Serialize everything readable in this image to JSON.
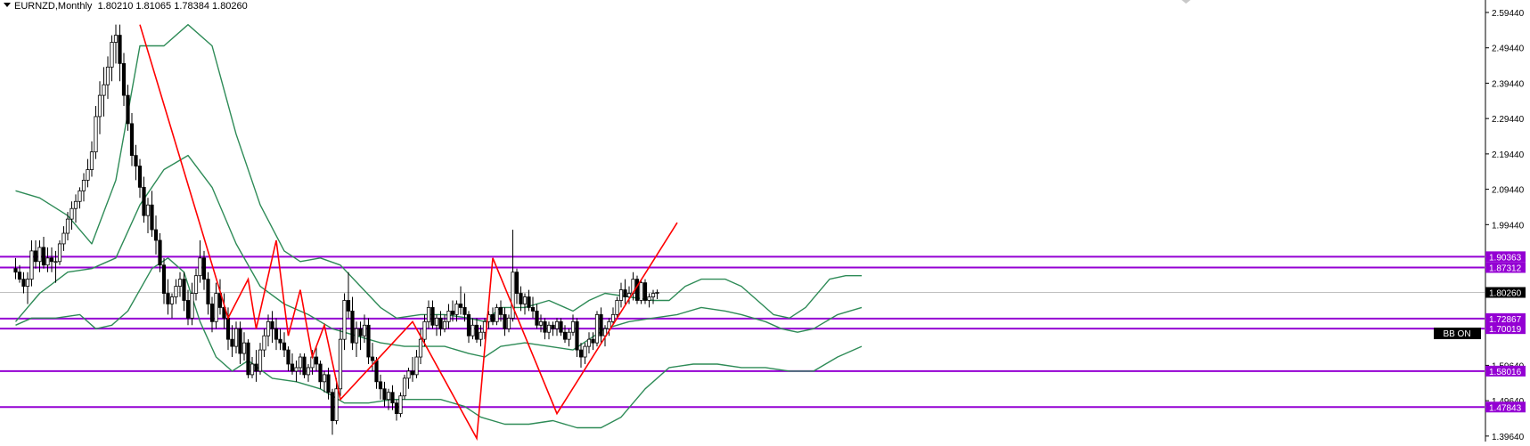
{
  "header": {
    "symbol": "EURNZD",
    "timeframe": "Monthly",
    "ohlc": "1.80210 1.81065 1.78384 1.80260"
  },
  "badge": {
    "label": "BB ON"
  },
  "colors": {
    "candle": "#000000",
    "bands": "#2e8b57",
    "zigzag": "#ff0000",
    "levels": "#9400d3",
    "axis": "#000000",
    "current_price_line": "#c0c0c0"
  },
  "chart_data": {
    "type": "candlestick",
    "symbol": "EURNZD",
    "timeframe": "Monthly",
    "ylim": [
      1.3664,
      2.5944
    ],
    "y_ticks": [
      "2.59440",
      "2.49440",
      "2.39440",
      "2.29440",
      "2.19440",
      "2.09440",
      "1.99440",
      "1.59640",
      "1.49640",
      "1.39640"
    ],
    "y_tick_values": [
      2.5944,
      2.4944,
      2.3944,
      2.2944,
      2.1944,
      2.0944,
      1.9944,
      1.5964,
      1.4964,
      1.3964
    ],
    "last_price": {
      "label": "1.80260",
      "value": 1.8026
    },
    "levels": [
      {
        "label": "1.90363",
        "value": 1.90363
      },
      {
        "label": "1.87312",
        "value": 1.87312
      },
      {
        "label": "1.72867",
        "value": 1.72867
      },
      {
        "label": "1.70019",
        "value": 1.70019
      },
      {
        "label": "1.58016",
        "value": 1.58016
      },
      {
        "label": "1.47843",
        "value": 1.47843
      }
    ],
    "zigzag": [
      {
        "i": 0,
        "y": 2.56
      },
      {
        "i": 22,
        "y": 1.73
      },
      {
        "i": 27,
        "y": 1.84
      },
      {
        "i": 29,
        "y": 1.7
      },
      {
        "i": 34,
        "y": 1.95
      },
      {
        "i": 37,
        "y": 1.68
      },
      {
        "i": 40,
        "y": 1.81
      },
      {
        "i": 43,
        "y": 1.62
      },
      {
        "i": 46,
        "y": 1.71
      },
      {
        "i": 50,
        "y": 1.5
      },
      {
        "i": 68,
        "y": 1.72
      },
      {
        "i": 84,
        "y": 1.39
      },
      {
        "i": 88,
        "y": 1.9
      },
      {
        "i": 104,
        "y": 1.46
      },
      {
        "i": 134,
        "y": 2.0
      }
    ],
    "candles_start_i": -31,
    "candles": [
      [
        1.87,
        1.9,
        1.84,
        1.86
      ],
      [
        1.86,
        1.88,
        1.83,
        1.84
      ],
      [
        1.84,
        1.86,
        1.8,
        1.82
      ],
      [
        1.82,
        1.86,
        1.77,
        1.84
      ],
      [
        1.84,
        1.95,
        1.82,
        1.92
      ],
      [
        1.92,
        1.95,
        1.87,
        1.89
      ],
      [
        1.89,
        1.95,
        1.86,
        1.93
      ],
      [
        1.93,
        1.96,
        1.87,
        1.88
      ],
      [
        1.88,
        1.93,
        1.86,
        1.9
      ],
      [
        1.9,
        1.93,
        1.86,
        1.89
      ],
      [
        1.89,
        1.92,
        1.83,
        1.89
      ],
      [
        1.89,
        1.95,
        1.88,
        1.94
      ],
      [
        1.94,
        1.99,
        1.92,
        1.97
      ],
      [
        1.97,
        2.03,
        1.95,
        2.01
      ],
      [
        2.01,
        2.06,
        1.98,
        2.04
      ],
      [
        2.04,
        2.08,
        2.0,
        2.06
      ],
      [
        2.06,
        2.1,
        2.04,
        2.09
      ],
      [
        2.09,
        2.14,
        2.06,
        2.12
      ],
      [
        2.12,
        2.18,
        2.1,
        2.15
      ],
      [
        2.15,
        2.23,
        2.13,
        2.2
      ],
      [
        2.2,
        2.33,
        2.18,
        2.3
      ],
      [
        2.3,
        2.4,
        2.25,
        2.36
      ],
      [
        2.36,
        2.44,
        2.3,
        2.39
      ],
      [
        2.39,
        2.47,
        2.35,
        2.44
      ],
      [
        2.44,
        2.53,
        2.4,
        2.51
      ],
      [
        2.51,
        2.56,
        2.45,
        2.53
      ],
      [
        2.53,
        2.56,
        2.4,
        2.45
      ],
      [
        2.45,
        2.48,
        2.33,
        2.36
      ],
      [
        2.36,
        2.39,
        2.26,
        2.28
      ],
      [
        2.28,
        2.31,
        2.16,
        2.19
      ],
      [
        2.19,
        2.22,
        2.12,
        2.16
      ],
      [
        2.16,
        2.18,
        2.07,
        2.1
      ],
      [
        2.1,
        2.13,
        2.0,
        2.02
      ],
      [
        2.02,
        2.07,
        1.97,
        2.05
      ],
      [
        2.05,
        2.09,
        1.96,
        1.98
      ],
      [
        1.98,
        2.02,
        1.91,
        1.95
      ],
      [
        1.95,
        1.97,
        1.86,
        1.88
      ],
      [
        1.88,
        1.9,
        1.77,
        1.8
      ],
      [
        1.8,
        1.84,
        1.74,
        1.77
      ],
      [
        1.77,
        1.8,
        1.73,
        1.79
      ],
      [
        1.79,
        1.84,
        1.77,
        1.82
      ],
      [
        1.82,
        1.86,
        1.79,
        1.84
      ],
      [
        1.84,
        1.86,
        1.75,
        1.78
      ],
      [
        1.78,
        1.81,
        1.71,
        1.73
      ],
      [
        1.73,
        1.83,
        1.71,
        1.8
      ],
      [
        1.8,
        1.87,
        1.78,
        1.85
      ],
      [
        1.85,
        1.95,
        1.83,
        1.9
      ],
      [
        1.9,
        1.92,
        1.81,
        1.84
      ],
      [
        1.84,
        1.86,
        1.74,
        1.77
      ],
      [
        1.77,
        1.79,
        1.69,
        1.72
      ],
      [
        1.72,
        1.83,
        1.7,
        1.8
      ],
      [
        1.8,
        1.84,
        1.74,
        1.76
      ],
      [
        1.76,
        1.8,
        1.7,
        1.73
      ],
      [
        1.73,
        1.76,
        1.64,
        1.67
      ],
      [
        1.67,
        1.71,
        1.62,
        1.65
      ],
      [
        1.65,
        1.72,
        1.63,
        1.7
      ],
      [
        1.7,
        1.72,
        1.6,
        1.63
      ],
      [
        1.63,
        1.69,
        1.61,
        1.66
      ],
      [
        1.66,
        1.67,
        1.56,
        1.57
      ],
      [
        1.57,
        1.62,
        1.56,
        1.6
      ],
      [
        1.6,
        1.64,
        1.55,
        1.58
      ],
      [
        1.58,
        1.66,
        1.57,
        1.64
      ],
      [
        1.64,
        1.7,
        1.62,
        1.68
      ],
      [
        1.68,
        1.74,
        1.65,
        1.72
      ],
      [
        1.72,
        1.75,
        1.66,
        1.7
      ],
      [
        1.7,
        1.73,
        1.64,
        1.67
      ],
      [
        1.67,
        1.7,
        1.64,
        1.66
      ],
      [
        1.66,
        1.69,
        1.62,
        1.64
      ],
      [
        1.64,
        1.65,
        1.58,
        1.6
      ],
      [
        1.6,
        1.63,
        1.57,
        1.58
      ],
      [
        1.58,
        1.61,
        1.55,
        1.59
      ],
      [
        1.59,
        1.63,
        1.57,
        1.62
      ],
      [
        1.62,
        1.63,
        1.56,
        1.57
      ],
      [
        1.57,
        1.6,
        1.55,
        1.59
      ],
      [
        1.59,
        1.64,
        1.57,
        1.62
      ],
      [
        1.62,
        1.65,
        1.58,
        1.6
      ],
      [
        1.6,
        1.61,
        1.53,
        1.55
      ],
      [
        1.55,
        1.58,
        1.52,
        1.57
      ],
      [
        1.57,
        1.59,
        1.5,
        1.52
      ],
      [
        1.52,
        1.53,
        1.4,
        1.44
      ],
      [
        1.44,
        1.56,
        1.43,
        1.53
      ],
      [
        1.53,
        1.7,
        1.51,
        1.67
      ],
      [
        1.67,
        1.8,
        1.64,
        1.78
      ],
      [
        1.78,
        1.86,
        1.73,
        1.75
      ],
      [
        1.75,
        1.79,
        1.64,
        1.66
      ],
      [
        1.66,
        1.72,
        1.62,
        1.7
      ],
      [
        1.7,
        1.72,
        1.64,
        1.68
      ],
      [
        1.68,
        1.74,
        1.66,
        1.71
      ],
      [
        1.71,
        1.73,
        1.6,
        1.62
      ],
      [
        1.62,
        1.66,
        1.58,
        1.61
      ],
      [
        1.61,
        1.62,
        1.53,
        1.55
      ],
      [
        1.55,
        1.57,
        1.5,
        1.53
      ],
      [
        1.53,
        1.55,
        1.48,
        1.5
      ],
      [
        1.5,
        1.53,
        1.47,
        1.52
      ],
      [
        1.52,
        1.54,
        1.47,
        1.49
      ],
      [
        1.49,
        1.5,
        1.44,
        1.46
      ],
      [
        1.46,
        1.52,
        1.45,
        1.51
      ],
      [
        1.51,
        1.57,
        1.5,
        1.56
      ],
      [
        1.56,
        1.59,
        1.53,
        1.58
      ],
      [
        1.58,
        1.62,
        1.55,
        1.57
      ],
      [
        1.57,
        1.64,
        1.56,
        1.62
      ],
      [
        1.62,
        1.7,
        1.6,
        1.67
      ],
      [
        1.67,
        1.74,
        1.65,
        1.72
      ],
      [
        1.72,
        1.78,
        1.7,
        1.76
      ],
      [
        1.76,
        1.78,
        1.7,
        1.71
      ],
      [
        1.71,
        1.74,
        1.68,
        1.73
      ],
      [
        1.73,
        1.75,
        1.68,
        1.7
      ],
      [
        1.7,
        1.74,
        1.69,
        1.72
      ],
      [
        1.72,
        1.77,
        1.7,
        1.75
      ],
      [
        1.75,
        1.78,
        1.72,
        1.74
      ],
      [
        1.74,
        1.78,
        1.72,
        1.77
      ],
      [
        1.77,
        1.82,
        1.74,
        1.76
      ],
      [
        1.76,
        1.8,
        1.72,
        1.74
      ],
      [
        1.74,
        1.75,
        1.66,
        1.68
      ],
      [
        1.68,
        1.73,
        1.67,
        1.71
      ],
      [
        1.71,
        1.73,
        1.66,
        1.67
      ],
      [
        1.67,
        1.71,
        1.65,
        1.69
      ],
      [
        1.69,
        1.73,
        1.67,
        1.72
      ],
      [
        1.72,
        1.75,
        1.7,
        1.74
      ],
      [
        1.74,
        1.76,
        1.71,
        1.72
      ],
      [
        1.72,
        1.77,
        1.71,
        1.76
      ],
      [
        1.76,
        1.78,
        1.72,
        1.74
      ],
      [
        1.74,
        1.76,
        1.68,
        1.7
      ],
      [
        1.7,
        1.74,
        1.69,
        1.73
      ],
      [
        1.73,
        1.98,
        1.72,
        1.86
      ],
      [
        1.86,
        1.87,
        1.77,
        1.8
      ],
      [
        1.8,
        1.82,
        1.75,
        1.77
      ],
      [
        1.77,
        1.8,
        1.74,
        1.79
      ],
      [
        1.79,
        1.81,
        1.75,
        1.76
      ],
      [
        1.76,
        1.79,
        1.73,
        1.75
      ],
      [
        1.75,
        1.77,
        1.7,
        1.71
      ],
      [
        1.71,
        1.74,
        1.69,
        1.72
      ],
      [
        1.72,
        1.73,
        1.67,
        1.69
      ],
      [
        1.69,
        1.72,
        1.67,
        1.71
      ],
      [
        1.71,
        1.72,
        1.68,
        1.7
      ],
      [
        1.7,
        1.73,
        1.68,
        1.72
      ],
      [
        1.72,
        1.73,
        1.68,
        1.69
      ],
      [
        1.69,
        1.71,
        1.66,
        1.67
      ],
      [
        1.67,
        1.7,
        1.65,
        1.69
      ],
      [
        1.69,
        1.74,
        1.68,
        1.72
      ],
      [
        1.72,
        1.73,
        1.62,
        1.64
      ],
      [
        1.64,
        1.66,
        1.59,
        1.62
      ],
      [
        1.62,
        1.66,
        1.6,
        1.65
      ],
      [
        1.65,
        1.69,
        1.63,
        1.67
      ],
      [
        1.67,
        1.69,
        1.64,
        1.66
      ],
      [
        1.66,
        1.75,
        1.65,
        1.74
      ],
      [
        1.74,
        1.76,
        1.66,
        1.68
      ],
      [
        1.68,
        1.71,
        1.65,
        1.7
      ],
      [
        1.7,
        1.73,
        1.68,
        1.72
      ],
      [
        1.72,
        1.76,
        1.71,
        1.74
      ],
      [
        1.74,
        1.79,
        1.73,
        1.78
      ],
      [
        1.78,
        1.83,
        1.76,
        1.81
      ],
      [
        1.81,
        1.84,
        1.77,
        1.79
      ],
      [
        1.79,
        1.82,
        1.77,
        1.8
      ],
      [
        1.8,
        1.86,
        1.78,
        1.84
      ],
      [
        1.84,
        1.85,
        1.77,
        1.78
      ],
      [
        1.78,
        1.84,
        1.77,
        1.83
      ],
      [
        1.83,
        1.84,
        1.77,
        1.78
      ],
      [
        1.78,
        1.8,
        1.76,
        1.79
      ],
      [
        1.79,
        1.81,
        1.77,
        1.8
      ],
      [
        1.8021,
        1.81065,
        1.78384,
        1.8026
      ]
    ],
    "bollinger": {
      "upper": [
        [
          -31,
          2.09
        ],
        [
          -25,
          2.07
        ],
        [
          -18,
          2.02
        ],
        [
          -12,
          1.94
        ],
        [
          -6,
          2.12
        ],
        [
          0,
          2.5
        ],
        [
          6,
          2.5
        ],
        [
          12,
          2.56
        ],
        [
          18,
          2.5
        ],
        [
          24,
          2.25
        ],
        [
          30,
          2.05
        ],
        [
          36,
          1.92
        ],
        [
          40,
          1.89
        ],
        [
          45,
          1.9
        ],
        [
          50,
          1.88
        ],
        [
          55,
          1.82
        ],
        [
          60,
          1.76
        ],
        [
          64,
          1.73
        ],
        [
          70,
          1.74
        ],
        [
          76,
          1.74
        ],
        [
          82,
          1.73
        ],
        [
          86,
          1.72
        ],
        [
          90,
          1.76
        ],
        [
          96,
          1.76
        ],
        [
          102,
          1.78
        ],
        [
          108,
          1.75
        ],
        [
          112,
          1.78
        ],
        [
          116,
          1.8
        ],
        [
          122,
          1.79
        ],
        [
          128,
          1.78
        ],
        [
          132,
          1.78
        ],
        [
          136,
          1.82
        ],
        [
          140,
          1.84
        ],
        [
          146,
          1.84
        ],
        [
          150,
          1.82
        ],
        [
          154,
          1.78
        ],
        [
          158,
          1.74
        ],
        [
          162,
          1.73
        ],
        [
          166,
          1.76
        ],
        [
          172,
          1.84
        ],
        [
          176,
          1.85
        ],
        [
          180,
          1.85
        ]
      ],
      "middle": [
        [
          -31,
          1.72
        ],
        [
          -25,
          1.8
        ],
        [
          -18,
          1.86
        ],
        [
          -12,
          1.87
        ],
        [
          -6,
          1.9
        ],
        [
          0,
          2.05
        ],
        [
          6,
          2.15
        ],
        [
          12,
          2.19
        ],
        [
          18,
          2.1
        ],
        [
          24,
          1.94
        ],
        [
          30,
          1.82
        ],
        [
          36,
          1.77
        ],
        [
          42,
          1.74
        ],
        [
          48,
          1.7
        ],
        [
          54,
          1.68
        ],
        [
          60,
          1.66
        ],
        [
          66,
          1.65
        ],
        [
          70,
          1.65
        ],
        [
          76,
          1.65
        ],
        [
          82,
          1.63
        ],
        [
          86,
          1.62
        ],
        [
          90,
          1.65
        ],
        [
          96,
          1.66
        ],
        [
          102,
          1.65
        ],
        [
          108,
          1.64
        ],
        [
          112,
          1.67
        ],
        [
          116,
          1.7
        ],
        [
          122,
          1.72
        ],
        [
          128,
          1.73
        ],
        [
          134,
          1.74
        ],
        [
          140,
          1.76
        ],
        [
          146,
          1.75
        ],
        [
          150,
          1.74
        ],
        [
          156,
          1.72
        ],
        [
          160,
          1.7
        ],
        [
          164,
          1.69
        ],
        [
          168,
          1.7
        ],
        [
          174,
          1.74
        ],
        [
          180,
          1.76
        ]
      ],
      "lower": [
        [
          -31,
          1.71
        ],
        [
          -27,
          1.73
        ],
        [
          -21,
          1.73
        ],
        [
          -15,
          1.74
        ],
        [
          -11,
          1.7
        ],
        [
          -7,
          1.71
        ],
        [
          -3,
          1.75
        ],
        [
          3,
          1.87
        ],
        [
          7,
          1.9
        ],
        [
          11,
          1.86
        ],
        [
          15,
          1.72
        ],
        [
          19,
          1.62
        ],
        [
          23,
          1.58
        ],
        [
          27,
          1.61
        ],
        [
          33,
          1.56
        ],
        [
          39,
          1.55
        ],
        [
          45,
          1.53
        ],
        [
          51,
          1.49
        ],
        [
          57,
          1.49
        ],
        [
          63,
          1.5
        ],
        [
          69,
          1.5
        ],
        [
          75,
          1.5
        ],
        [
          81,
          1.48
        ],
        [
          85,
          1.45
        ],
        [
          91,
          1.43
        ],
        [
          97,
          1.43
        ],
        [
          103,
          1.44
        ],
        [
          109,
          1.42
        ],
        [
          115,
          1.42
        ],
        [
          120,
          1.45
        ],
        [
          126,
          1.53
        ],
        [
          132,
          1.59
        ],
        [
          138,
          1.6
        ],
        [
          144,
          1.6
        ],
        [
          150,
          1.59
        ],
        [
          156,
          1.59
        ],
        [
          162,
          1.58
        ],
        [
          168,
          1.58
        ],
        [
          174,
          1.62
        ],
        [
          180,
          1.65
        ]
      ]
    }
  }
}
